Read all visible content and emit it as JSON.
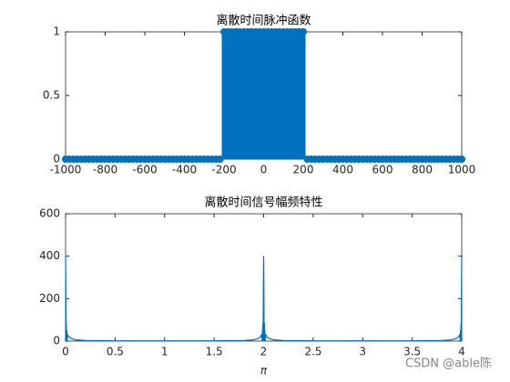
{
  "chart_data": [
    {
      "type": "stem",
      "title": "离散时间脉冲函数",
      "color": "#0072BD",
      "x": [
        -1000,
        -980,
        -960,
        -940,
        -920,
        -900,
        -880,
        -860,
        -840,
        -820,
        -800,
        -780,
        -760,
        -740,
        -720,
        -700,
        -680,
        -660,
        -640,
        -620,
        -600,
        -580,
        -560,
        -540,
        -520,
        -500,
        -480,
        -460,
        -440,
        -420,
        -400,
        -380,
        -360,
        -340,
        -320,
        -300,
        -280,
        -260,
        -240,
        -220,
        -200,
        -180,
        -160,
        -140,
        -120,
        -100,
        -80,
        -60,
        -40,
        -20,
        0,
        20,
        40,
        60,
        80,
        100,
        120,
        140,
        160,
        180,
        200,
        220,
        240,
        260,
        280,
        300,
        320,
        340,
        360,
        380,
        400,
        420,
        440,
        460,
        480,
        500,
        520,
        540,
        560,
        580,
        600,
        620,
        640,
        660,
        680,
        700,
        720,
        740,
        760,
        780,
        800,
        820,
        840,
        860,
        880,
        900,
        920,
        940,
        960,
        980,
        1000
      ],
      "values": [
        0,
        0,
        0,
        0,
        0,
        0,
        0,
        0,
        0,
        0,
        0,
        0,
        0,
        0,
        0,
        0,
        0,
        0,
        0,
        0,
        0,
        0,
        0,
        0,
        0,
        0,
        0,
        0,
        0,
        0,
        0,
        0,
        0,
        0,
        0,
        0,
        0,
        0,
        0,
        0,
        1,
        1,
        1,
        1,
        1,
        1,
        1,
        1,
        1,
        1,
        1,
        1,
        1,
        1,
        1,
        1,
        1,
        1,
        1,
        1,
        1,
        0,
        0,
        0,
        0,
        0,
        0,
        0,
        0,
        0,
        0,
        0,
        0,
        0,
        0,
        0,
        0,
        0,
        0,
        0,
        0,
        0,
        0,
        0,
        0,
        0,
        0,
        0,
        0,
        0,
        0,
        0,
        0,
        0,
        0,
        0,
        0,
        0,
        0,
        0,
        0
      ],
      "xlim": [
        -1000,
        1000
      ],
      "xticks": [
        -1000,
        -800,
        -600,
        -400,
        -200,
        0,
        200,
        400,
        600,
        800,
        1000
      ],
      "ylim": [
        0,
        1
      ],
      "yticks": [
        0,
        0.5,
        1
      ]
    },
    {
      "type": "line",
      "title": "离散时间信号幅频特性",
      "xlabel": "π",
      "color": "#0072BD",
      "x": [
        0,
        0.0025,
        0.005,
        0.0075,
        0.01,
        0.0125,
        0.015,
        0.02,
        0.03,
        0.05,
        0.1,
        0.2,
        0.5,
        1,
        1.5,
        1.8,
        1.9,
        1.95,
        1.97,
        1.98,
        1.985,
        1.9875,
        1.99,
        1.9925,
        1.995,
        1.9975,
        2,
        2.0025,
        2.005,
        2.0075,
        2.01,
        2.0125,
        2.015,
        2.02,
        2.03,
        2.05,
        2.1,
        2.2,
        2.5,
        3,
        3.5,
        3.8,
        3.9,
        3.95,
        3.97,
        3.98,
        3.985,
        3.9875,
        3.99,
        3.9925,
        3.995,
        3.9975,
        4
      ],
      "values": [
        401,
        255,
        0,
        85,
        0,
        51,
        0,
        32,
        21,
        13,
        6,
        3,
        1.4,
        1,
        1.4,
        3,
        6,
        13,
        21,
        32,
        0,
        51,
        0,
        85,
        0,
        255,
        401,
        255,
        0,
        85,
        0,
        51,
        0,
        32,
        21,
        13,
        6,
        3,
        1.4,
        1,
        1.4,
        3,
        6,
        13,
        21,
        32,
        0,
        51,
        0,
        85,
        0,
        255,
        401
      ],
      "xlim": [
        0,
        4
      ],
      "xticks": [
        0,
        0.5,
        1,
        1.5,
        2,
        2.5,
        3,
        3.5,
        4
      ],
      "ylim": [
        0,
        600
      ],
      "yticks": [
        0,
        200,
        400,
        600
      ]
    }
  ],
  "watermark": "CSDN @able陈"
}
